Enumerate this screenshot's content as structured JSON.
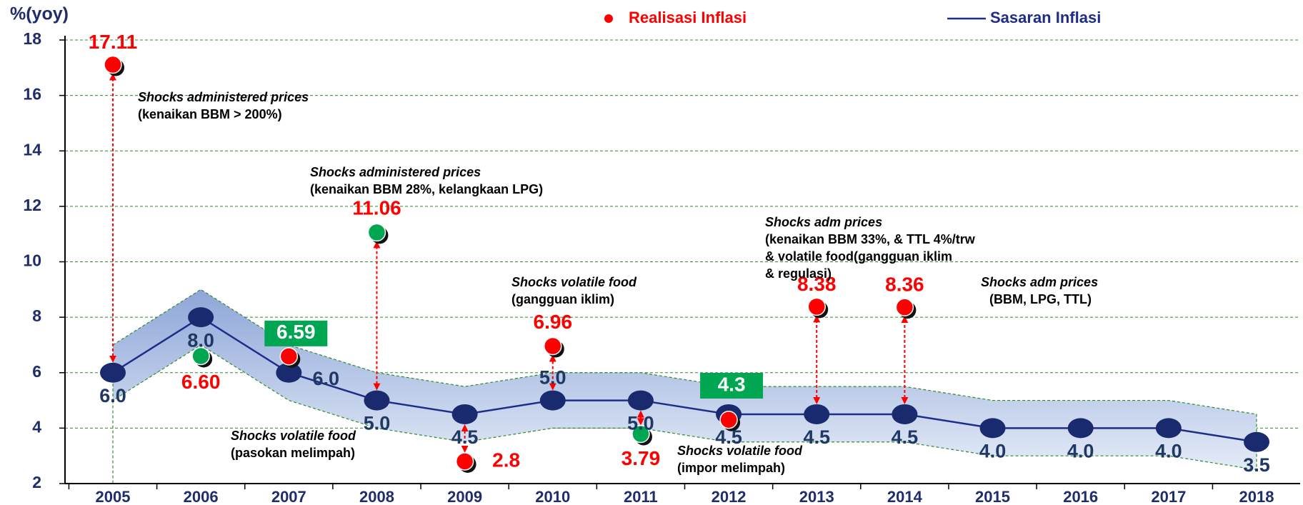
{
  "chart_data": {
    "type": "line",
    "y_axis_label": "%(yoy)",
    "categories": [
      "2005",
      "2006",
      "2007",
      "2008",
      "2009",
      "2010",
      "2011",
      "2012",
      "2013",
      "2014",
      "2015",
      "2016",
      "2017",
      "2018"
    ],
    "ylim": [
      2,
      18
    ],
    "yticks": [
      2,
      4,
      6,
      8,
      10,
      12,
      14,
      16,
      18
    ],
    "grid": true,
    "series": [
      {
        "name": "Realisasi Inflasi",
        "color": "#ff0000",
        "point_colors": [
          "#ff0000",
          "#00a651",
          "#ff0000",
          "#00a651",
          "#ff0000",
          "#ff0000",
          "#00a651",
          "#ff0000",
          "#ff0000",
          "#ff0000",
          null,
          null,
          null,
          null
        ],
        "values": [
          17.11,
          6.6,
          6.59,
          11.06,
          2.8,
          6.96,
          3.79,
          4.3,
          8.38,
          8.36,
          null,
          null,
          null,
          null
        ],
        "value_labels": [
          "17.11",
          "6.60",
          "6.59",
          "11.06",
          "2.8",
          "6.96",
          "3.79",
          "4.3",
          "8.38",
          "8.36",
          null,
          null,
          null,
          null
        ]
      },
      {
        "name": "Sasaran Inflasi",
        "color": "#1f2d8a",
        "values": [
          6,
          8,
          6,
          5,
          4.5,
          5,
          5,
          4.5,
          4.5,
          4.5,
          4,
          4,
          4,
          3.5
        ],
        "value_labels": [
          "6.0",
          "8.0",
          "6.0",
          "5.0",
          "4.5",
          "5.0",
          "5.0",
          "4.5",
          "4.5",
          "4.5",
          "4.0",
          "4.0",
          "4.0",
          "3.5"
        ]
      }
    ],
    "band_upper": [
      7,
      9,
      7,
      6,
      5.5,
      6,
      6,
      5.5,
      5.5,
      5.5,
      5,
      5,
      5,
      4.5
    ],
    "band_lower": [
      5,
      7,
      5,
      4,
      3.5,
      4,
      4,
      3.5,
      3.5,
      3.5,
      3,
      3,
      3,
      2.5
    ],
    "annotations": [
      [
        "Shocks administered prices",
        "(kenaikan BBM  > 200%)"
      ],
      [
        "Shocks administered prices",
        "(kenaikan BBM  28%, kelangkaan LPG)"
      ],
      [
        "Shocks  adm prices",
        "(kenaikan BBM 33%, & TTL 4%/trw",
        "& volatile food(gangguan iklim",
        "& regulasi)"
      ],
      [
        "Shocks  adm prices",
        "(BBM, LPG, TTL)"
      ],
      [
        "Shocks  volatile food",
        "(gangguan iklim)"
      ],
      [
        "Shocks  volatile food",
        "(pasokan melimpah)"
      ],
      [
        "Shocks  volatile food",
        "(impor melimpah)"
      ]
    ]
  }
}
